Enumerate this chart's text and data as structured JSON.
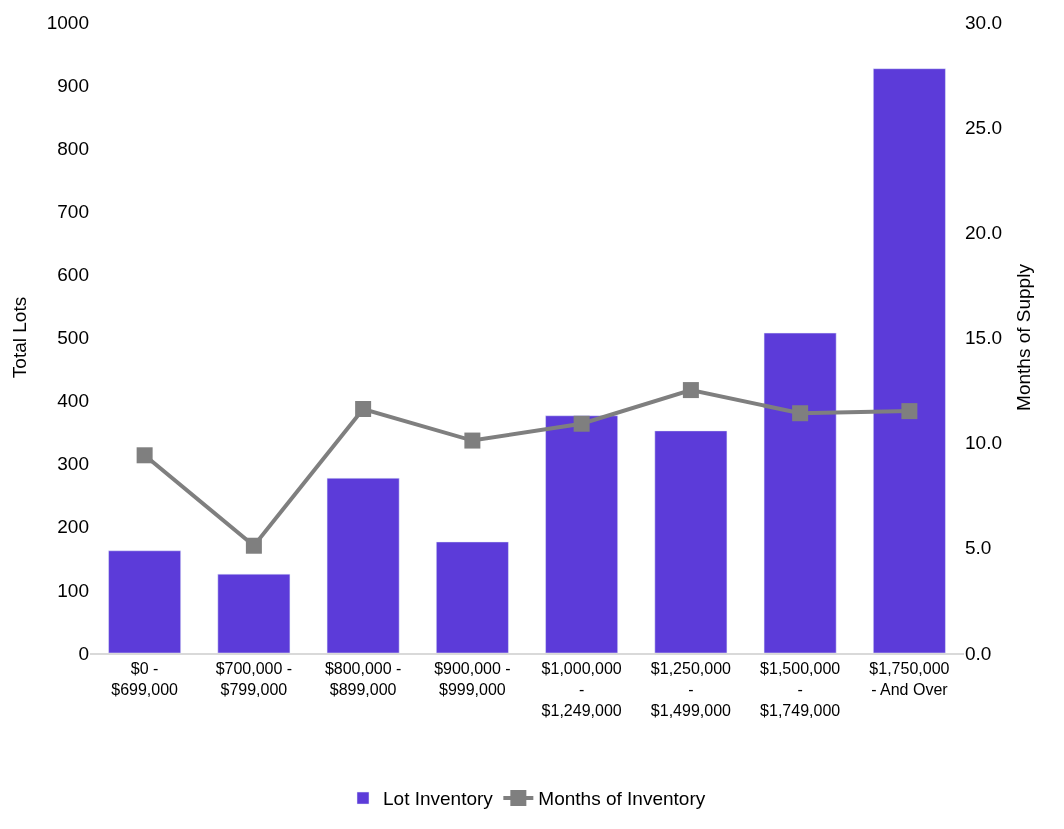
{
  "chart_data": {
    "type": "bar",
    "ylabel": "Total Lots",
    "y2label": "Months of Supply",
    "categories": [
      "$0 - $699,000",
      "$700,000 - $799,000",
      "$800,000 - $899,000",
      "$900,000 - $999,000",
      "$1,000,000 - $1,249,000",
      "$1,250,000 - $1,499,000",
      "$1,500,000 - $1,749,000",
      "$1,750,000 - And Over"
    ],
    "series": [
      {
        "name": "Lot Inventory",
        "color": "#5c3bd9",
        "values": [
          162,
          125,
          277,
          176,
          376,
          352,
          507,
          926
        ]
      },
      {
        "name": "Months of Inventory",
        "type": "line",
        "axis": "y2",
        "color": "#7f7f7f",
        "marker": "square",
        "values": [
          9.4,
          5.1,
          11.6,
          10.1,
          10.9,
          12.5,
          11.4,
          11.5
        ]
      }
    ],
    "ylim": [
      0,
      1000
    ],
    "yticks": [
      0,
      100,
      200,
      300,
      400,
      500,
      600,
      700,
      800,
      900,
      1000
    ],
    "y2lim": [
      0,
      30
    ],
    "y2ticks": [
      {
        "value": 0,
        "label": "0.0"
      },
      {
        "value": 5,
        "label": "5.0"
      },
      {
        "value": 10,
        "label": "10.0"
      },
      {
        "value": 15,
        "label": "15.0"
      },
      {
        "value": 20,
        "label": "20.0"
      },
      {
        "value": 25,
        "label": "25.0"
      },
      {
        "value": 30,
        "label": "30.0"
      }
    ],
    "legend": "bottom"
  }
}
